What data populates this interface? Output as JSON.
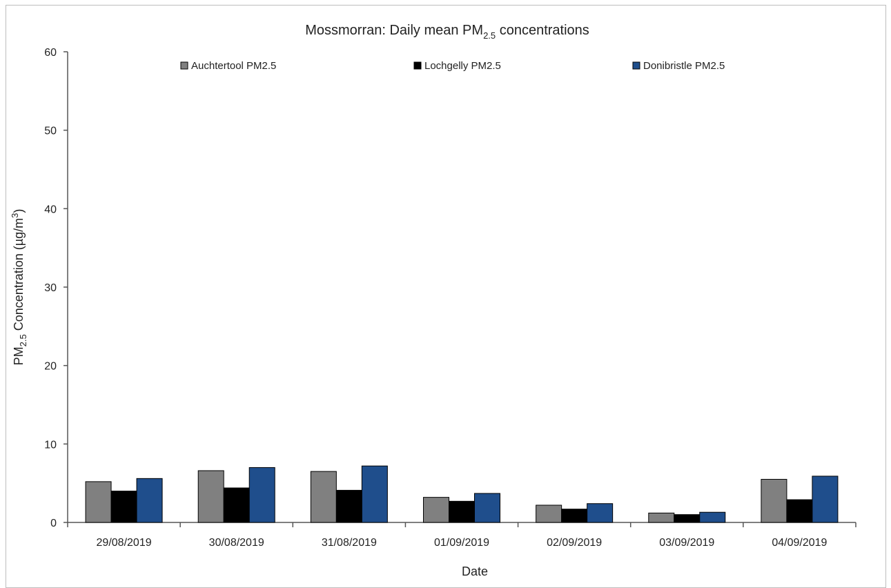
{
  "chart_data": {
    "type": "bar",
    "title": {
      "prefix": "Mossmorran: Daily mean PM",
      "subscript": "2.5",
      "suffix": " concentrations"
    },
    "xlabel": "Date",
    "ylabel": {
      "prefix": "PM",
      "subscript": "2.5",
      "middle": " Concentration (µg/m",
      "superscript": "3",
      "suffix": ")"
    },
    "ylim": [
      0,
      60
    ],
    "yticks": [
      "0",
      "10",
      "20",
      "30",
      "40",
      "50",
      "60"
    ],
    "grid": false,
    "legend_position": "top",
    "categories": [
      "29/08/2019",
      "30/08/2019",
      "31/08/2019",
      "01/09/2019",
      "02/09/2019",
      "03/09/2019",
      "04/09/2019"
    ],
    "series": [
      {
        "name": "Auchtertool PM2.5",
        "color": "#808080",
        "values": [
          5.2,
          6.6,
          6.5,
          3.2,
          2.2,
          1.2,
          5.5
        ]
      },
      {
        "name": "Lochgelly PM2.5",
        "color": "#000000",
        "values": [
          4.0,
          4.4,
          4.1,
          2.7,
          1.7,
          1.0,
          2.9
        ]
      },
      {
        "name": "Donibristle PM2.5",
        "color": "#1f4e8c",
        "values": [
          5.6,
          7.0,
          7.2,
          3.7,
          2.4,
          1.3,
          5.9
        ]
      }
    ]
  }
}
